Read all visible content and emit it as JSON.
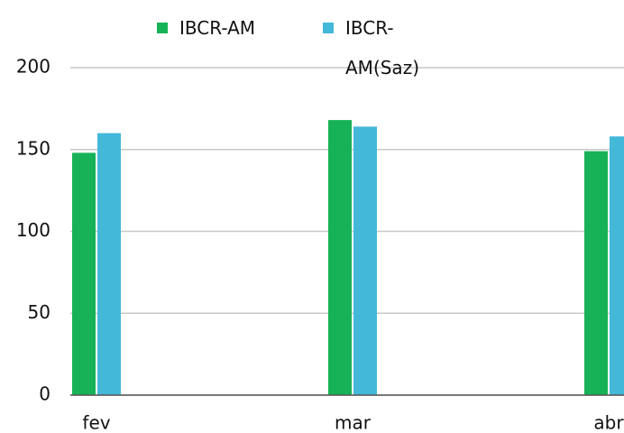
{
  "chart_data": {
    "type": "bar",
    "categories": [
      "fev",
      "mar",
      "abr"
    ],
    "series": [
      {
        "name": "IBCR-AM",
        "color": "#17b257",
        "values": [
          148,
          168,
          149
        ]
      },
      {
        "name": "IBCR-AM(Saz)",
        "color": "#44b8d9",
        "values": [
          160,
          164,
          158
        ]
      }
    ],
    "ylim": [
      0,
      200
    ],
    "yticks": [
      0,
      50,
      100,
      150,
      200
    ],
    "grid": true
  }
}
